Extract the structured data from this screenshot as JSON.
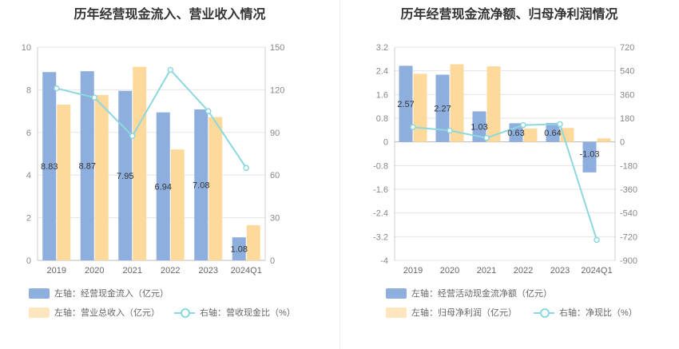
{
  "colors": {
    "bar1": "#8eaede",
    "bar2": "#fdd99b",
    "line": "#8dd8dd",
    "grid": "#e6e6e6"
  },
  "chart_data": [
    {
      "type": "bar",
      "title": "历年经营现金流入、营业收入情况",
      "categories": [
        "2019",
        "2020",
        "2021",
        "2022",
        "2023",
        "2024Q1"
      ],
      "y_left": {
        "min": 0,
        "max": 10,
        "ticks": [
          "0",
          "2",
          "4",
          "6",
          "8",
          "10"
        ]
      },
      "y_right": {
        "min": 0,
        "max": 150,
        "ticks": [
          "0",
          "30",
          "60",
          "90",
          "120",
          "150"
        ]
      },
      "series": [
        {
          "name": "左轴：经营现金流入（亿元）",
          "axis": "left",
          "kind": "bar",
          "values": [
            8.83,
            8.87,
            7.95,
            6.94,
            7.08,
            1.08
          ],
          "labels": [
            "8.83",
            "8.87",
            "7.95",
            "6.94",
            "7.08",
            "1.08"
          ]
        },
        {
          "name": "左轴：营业总收入（亿元）",
          "axis": "left",
          "kind": "bar",
          "values": [
            7.3,
            7.75,
            9.08,
            5.2,
            6.72,
            1.65
          ]
        },
        {
          "name": "右轴：营收现金比（%）",
          "axis": "right",
          "kind": "line",
          "values": [
            121,
            114.5,
            87.5,
            134,
            105,
            65
          ]
        }
      ]
    },
    {
      "type": "bar",
      "title": "历年经营现金流净额、归母净利润情况",
      "categories": [
        "2019",
        "2020",
        "2021",
        "2022",
        "2023",
        "2024Q1"
      ],
      "y_left": {
        "min": -4,
        "max": 3.2,
        "ticks": [
          "-4",
          "-3.2",
          "-2.4",
          "-1.6",
          "-0.8",
          "0",
          "0.8",
          "1.6",
          "2.4",
          "3.2"
        ]
      },
      "y_right": {
        "min": -900,
        "max": 720,
        "ticks": [
          "-900",
          "-720",
          "-540",
          "-360",
          "-180",
          "0",
          "180",
          "360",
          "540",
          "720"
        ]
      },
      "series": [
        {
          "name": "左轴：经营活动现金流净额（亿元）",
          "axis": "left",
          "kind": "bar",
          "values": [
            2.57,
            2.27,
            1.03,
            0.63,
            0.64,
            -1.03
          ],
          "labels": [
            "2.57",
            "2.27",
            "1.03",
            "0.63",
            "0.64",
            "-1.03"
          ]
        },
        {
          "name": "左轴：归母净利润（亿元）",
          "axis": "left",
          "kind": "bar",
          "values": [
            2.3,
            2.62,
            2.55,
            0.45,
            0.47,
            0.12
          ]
        },
        {
          "name": "右轴：净现比（%）",
          "axis": "right",
          "kind": "line",
          "values": [
            112,
            86,
            30,
            128,
            135,
            -745
          ]
        }
      ]
    }
  ]
}
